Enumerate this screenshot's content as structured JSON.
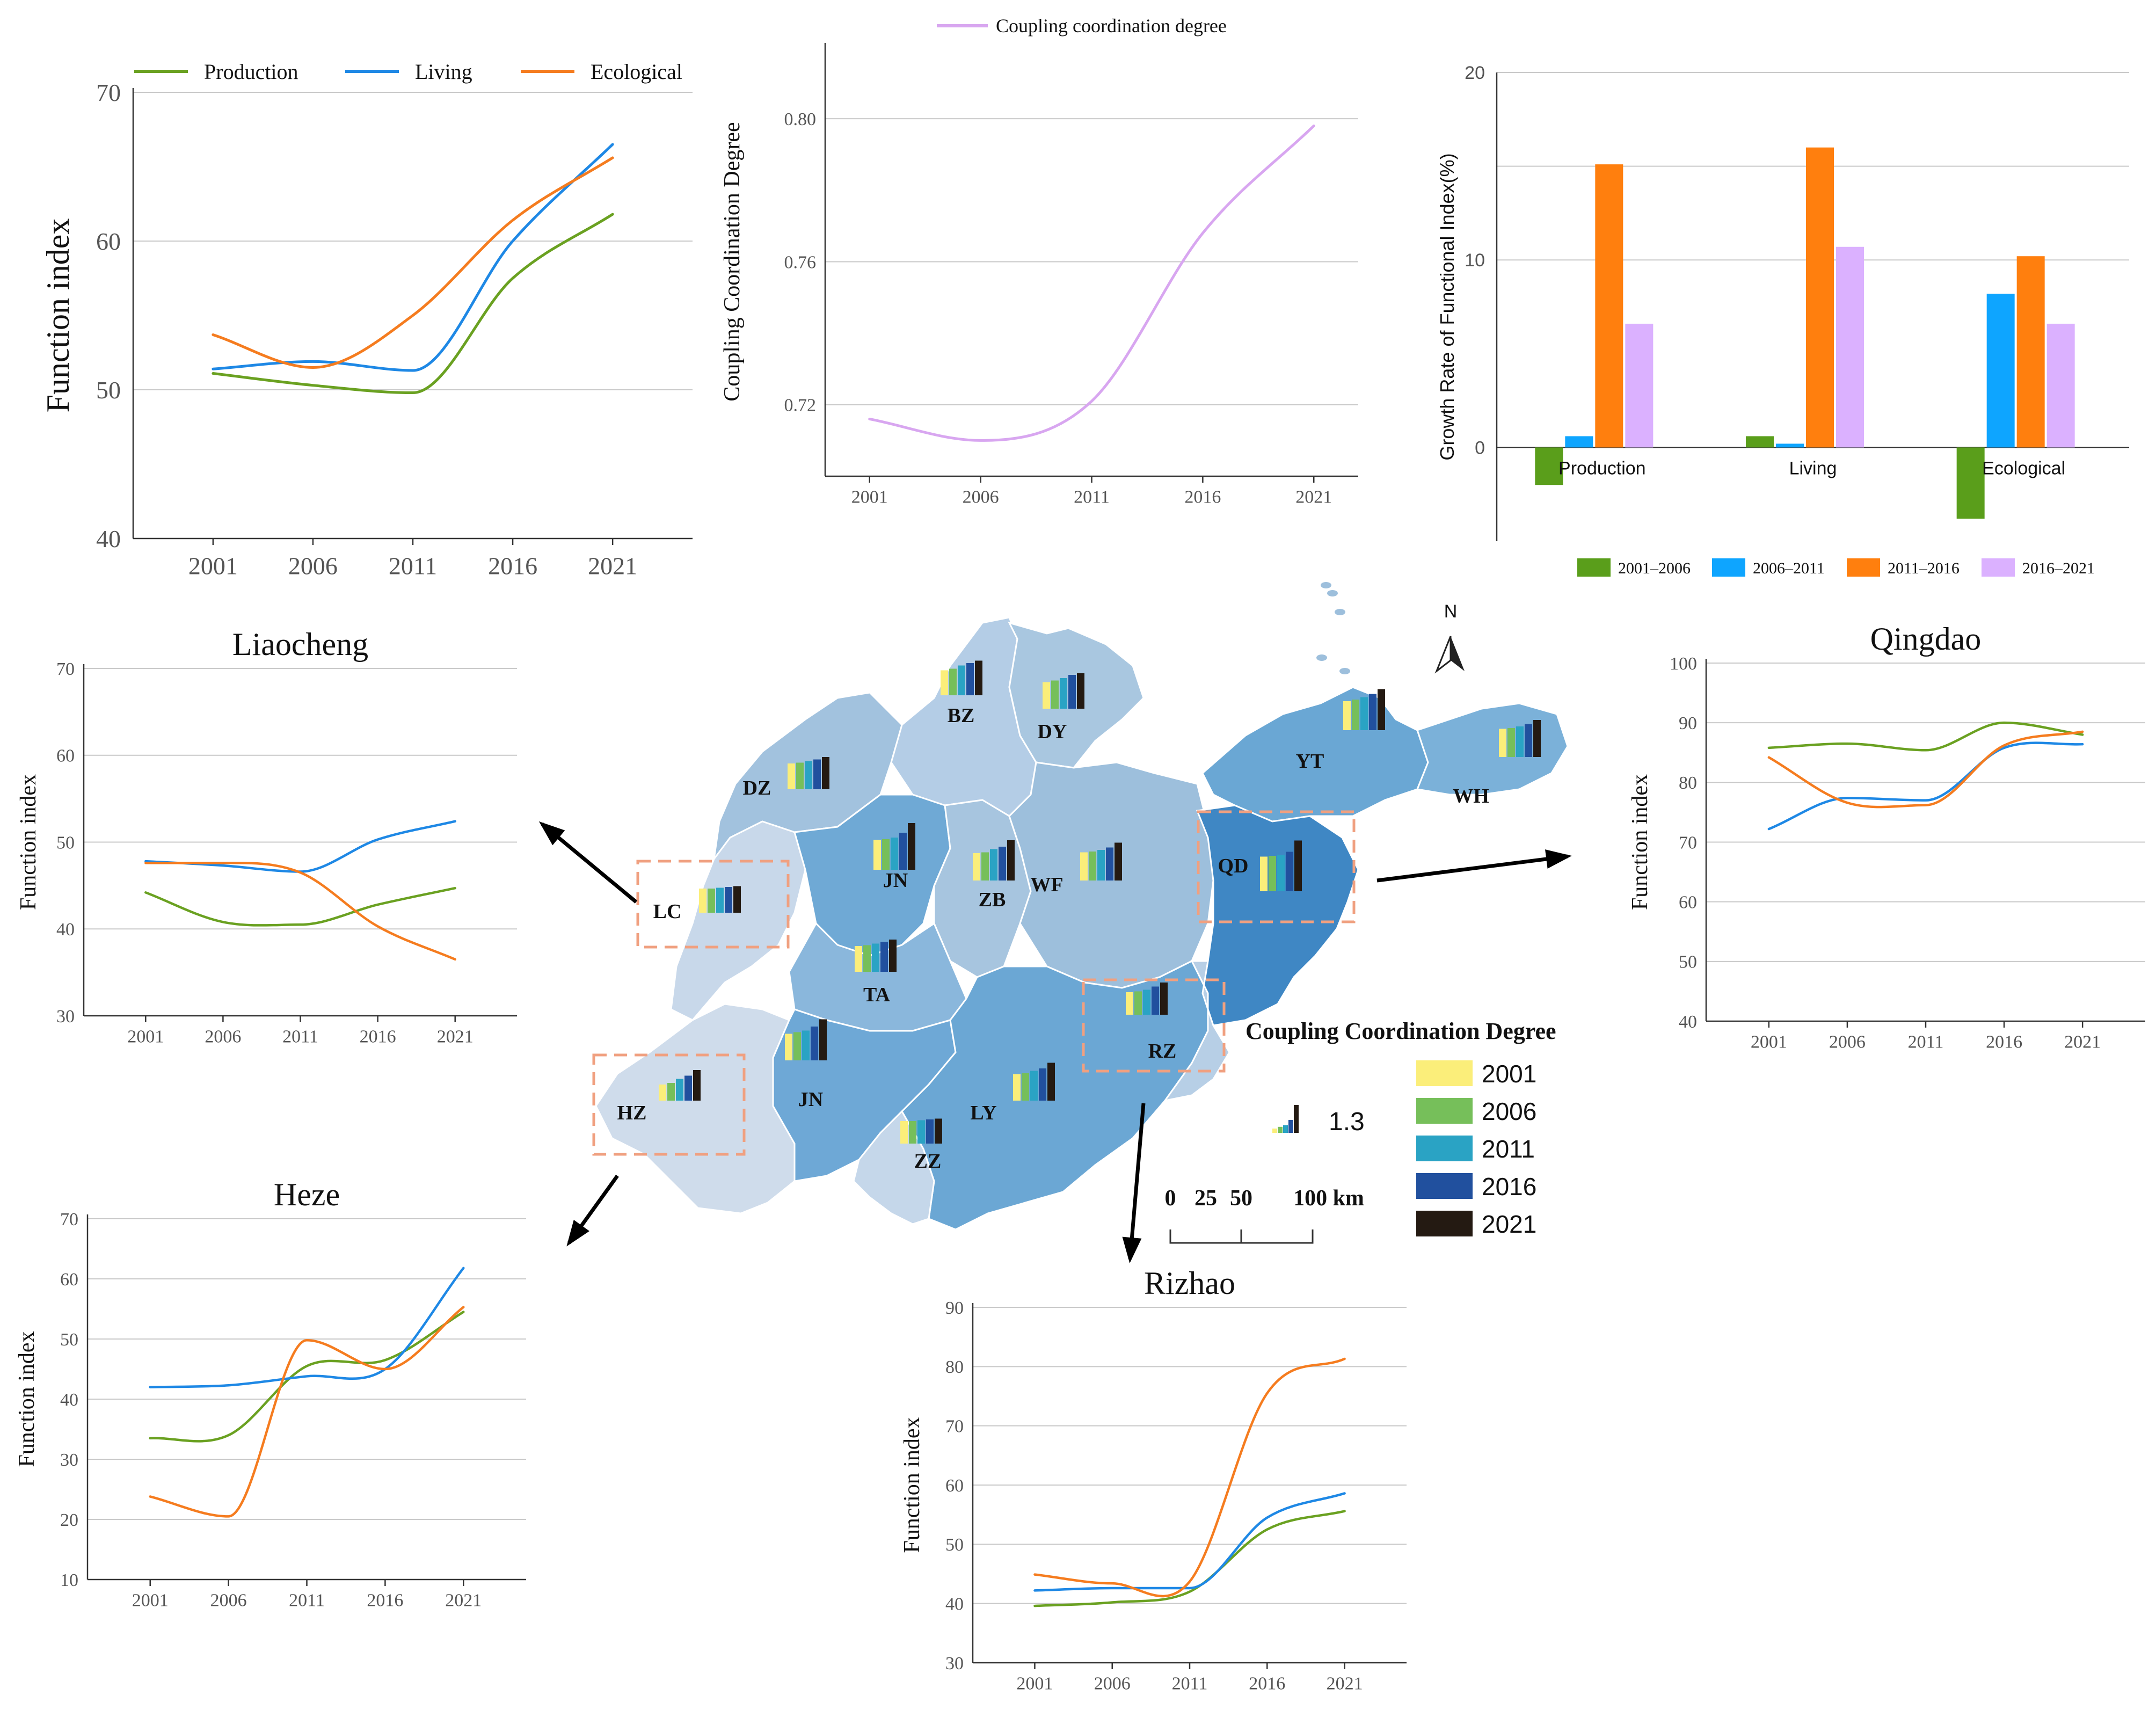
{
  "colors": {
    "production": "#6aa121",
    "living": "#1e88e5",
    "ecological": "#f57c1f",
    "coupling": "#d8a6f0",
    "g2001_2006": "#5a9e1b",
    "g2006_2011": "#0ea5ff",
    "g2011_2016": "#ff7f0e",
    "g2016_2021": "#dbb1ff",
    "y2001": "#fbee7a",
    "y2006": "#76bf5a",
    "y2011": "#2aa3c4",
    "y2016": "#21509e",
    "y2021": "#241a12",
    "grid": "#c9c9c9",
    "axis": "#333333",
    "dash_box": "#f0a080"
  },
  "chart_data": [
    {
      "id": "main",
      "type": "line",
      "title": "",
      "xlabel": "",
      "ylabel": "Function index",
      "x": [
        2001,
        2006,
        2011,
        2016,
        2021
      ],
      "xlim": [
        1997,
        2025
      ],
      "ylim": [
        40,
        70
      ],
      "yticks": [
        40,
        50,
        60,
        70
      ],
      "legend_position": "top",
      "series": [
        {
          "name": "Production",
          "key": "production",
          "values": [
            51.1,
            50.3,
            49.8,
            57.5,
            61.8
          ]
        },
        {
          "name": "Living",
          "key": "living",
          "values": [
            51.4,
            51.9,
            51.3,
            60.0,
            66.5
          ]
        },
        {
          "name": "Ecological",
          "key": "ecological",
          "values": [
            53.7,
            51.5,
            55.0,
            61.4,
            65.6
          ]
        }
      ]
    },
    {
      "id": "coupling",
      "type": "line",
      "title": "",
      "xlabel": "",
      "ylabel": "Coupling Coordination Degree",
      "x": [
        2001,
        2006,
        2011,
        2016,
        2021
      ],
      "xlim": [
        1999,
        2023
      ],
      "ylim": [
        0.7,
        0.82
      ],
      "yticks": [
        0.72,
        0.76,
        0.8
      ],
      "ytick_labels": [
        "0.72",
        "0.76",
        "0.80"
      ],
      "legend_position": "top",
      "series": [
        {
          "name": "Coupling coordination degree",
          "key": "coupling",
          "values": [
            0.716,
            0.71,
            0.721,
            0.768,
            0.798
          ]
        }
      ]
    },
    {
      "id": "growth",
      "type": "bar",
      "title": "",
      "xlabel": "",
      "ylabel": "Growth Rate of Functional Index(%)",
      "categories": [
        "Production",
        "Living",
        "Ecological"
      ],
      "ylim": [
        -5,
        20
      ],
      "yticks": [
        0,
        10,
        20
      ],
      "legend_position": "bottom",
      "series": [
        {
          "name": "2001–2006",
          "key": "g2001_2006",
          "values": [
            -2.0,
            0.6,
            -3.8
          ]
        },
        {
          "name": "2006–2011",
          "key": "g2006_2011",
          "values": [
            0.6,
            0.2,
            8.2
          ]
        },
        {
          "name": "2011–2016",
          "key": "g2011_2016",
          "values": [
            15.1,
            16.0,
            10.2
          ]
        },
        {
          "name": "2016–2021",
          "key": "g2016_2021",
          "values": [
            6.6,
            10.7,
            6.6
          ]
        }
      ]
    },
    {
      "id": "liaocheng",
      "type": "line",
      "title": "Liaocheng",
      "xlabel": "",
      "ylabel": "Function index",
      "x": [
        2001,
        2006,
        2011,
        2016,
        2021
      ],
      "xlim": [
        1997,
        2025
      ],
      "ylim": [
        30,
        70
      ],
      "yticks": [
        30,
        40,
        50,
        60,
        70
      ],
      "series": [
        {
          "name": "Production",
          "key": "production",
          "values": [
            44.2,
            40.8,
            40.5,
            42.8,
            44.7
          ]
        },
        {
          "name": "Living",
          "key": "living",
          "values": [
            47.8,
            47.3,
            46.6,
            50.3,
            52.4
          ]
        },
        {
          "name": "Ecological",
          "key": "ecological",
          "values": [
            47.6,
            47.6,
            46.5,
            40.3,
            36.5
          ]
        }
      ]
    },
    {
      "id": "qingdao",
      "type": "line",
      "title": "Qingdao",
      "xlabel": "",
      "ylabel": "Function index",
      "x": [
        2001,
        2006,
        2011,
        2016,
        2021
      ],
      "xlim": [
        1997,
        2025
      ],
      "ylim": [
        40,
        100
      ],
      "yticks": [
        40,
        50,
        60,
        70,
        80,
        90,
        100
      ],
      "series": [
        {
          "name": "Production",
          "key": "production",
          "values": [
            85.8,
            86.5,
            85.4,
            90.0,
            88.0
          ]
        },
        {
          "name": "Living",
          "key": "living",
          "values": [
            72.2,
            77.4,
            77.0,
            85.8,
            86.4
          ]
        },
        {
          "name": "Ecological",
          "key": "ecological",
          "values": [
            84.2,
            76.6,
            76.2,
            86.2,
            88.5
          ]
        }
      ]
    },
    {
      "id": "heze",
      "type": "line",
      "title": "Heze",
      "xlabel": "",
      "ylabel": "Function index",
      "x": [
        2001,
        2006,
        2011,
        2016,
        2021
      ],
      "xlim": [
        1997,
        2025
      ],
      "ylim": [
        10,
        70
      ],
      "yticks": [
        10,
        20,
        30,
        40,
        50,
        60,
        70
      ],
      "series": [
        {
          "name": "Production",
          "key": "production",
          "values": [
            33.5,
            34.0,
            45.5,
            46.5,
            54.5
          ]
        },
        {
          "name": "Living",
          "key": "living",
          "values": [
            42.0,
            42.3,
            43.8,
            45.0,
            61.8
          ]
        },
        {
          "name": "Ecological",
          "key": "ecological",
          "values": [
            23.8,
            20.5,
            49.8,
            45.0,
            55.3
          ]
        }
      ]
    },
    {
      "id": "rizhao",
      "type": "line",
      "title": "Rizhao",
      "xlabel": "",
      "ylabel": "Function index",
      "x": [
        2001,
        2006,
        2011,
        2016,
        2021
      ],
      "xlim": [
        1997,
        2025
      ],
      "ylim": [
        30,
        90
      ],
      "yticks": [
        30,
        40,
        50,
        60,
        70,
        80,
        90
      ],
      "series": [
        {
          "name": "Production",
          "key": "production",
          "values": [
            39.6,
            40.2,
            42.0,
            52.5,
            55.6
          ]
        },
        {
          "name": "Living",
          "key": "living",
          "values": [
            42.2,
            42.6,
            42.6,
            54.5,
            58.6
          ]
        },
        {
          "name": "Ecological",
          "key": "ecological",
          "values": [
            44.9,
            43.4,
            43.7,
            75.5,
            81.3
          ]
        }
      ]
    }
  ],
  "map": {
    "north_label": "N",
    "title": "Coupling Coordination Degree",
    "size_reference_label": "1.3",
    "scale_labels": [
      "0",
      "25",
      "50",
      "100 km"
    ],
    "year_legend": [
      "2001",
      "2006",
      "2011",
      "2016",
      "2021"
    ],
    "cities": [
      {
        "code": "BZ",
        "values": [
          0.62,
          0.66,
          0.74,
          0.8,
          0.86
        ]
      },
      {
        "code": "DY",
        "values": [
          0.66,
          0.7,
          0.76,
          0.84,
          0.88
        ]
      },
      {
        "code": "DZ",
        "values": [
          0.64,
          0.66,
          0.7,
          0.74,
          0.8
        ]
      },
      {
        "code": "YT",
        "values": [
          0.72,
          0.76,
          0.82,
          0.9,
          1.02
        ]
      },
      {
        "code": "WH",
        "values": [
          0.7,
          0.72,
          0.76,
          0.82,
          0.92
        ]
      },
      {
        "code": "JN",
        "values": [
          0.74,
          0.76,
          0.8,
          0.92,
          1.16
        ]
      },
      {
        "code": "ZB",
        "values": [
          0.68,
          0.7,
          0.78,
          0.84,
          1.0
        ]
      },
      {
        "code": "WF",
        "values": [
          0.7,
          0.72,
          0.76,
          0.82,
          0.94
        ]
      },
      {
        "code": "QD",
        "values": [
          0.86,
          0.88,
          0.9,
          0.98,
          1.26
        ]
      },
      {
        "code": "LC",
        "values": [
          0.6,
          0.6,
          0.62,
          0.64,
          0.66
        ]
      },
      {
        "code": "TA",
        "values": [
          0.64,
          0.66,
          0.7,
          0.74,
          0.8
        ]
      },
      {
        "code": "RZ",
        "values": [
          0.56,
          0.58,
          0.62,
          0.7,
          0.8
        ]
      },
      {
        "code": "JN",
        "values": [
          0.66,
          0.7,
          0.74,
          0.84,
          1.02
        ]
      },
      {
        "code": "HZ",
        "values": [
          0.4,
          0.44,
          0.54,
          0.62,
          0.76
        ]
      },
      {
        "code": "LY",
        "values": [
          0.66,
          0.68,
          0.74,
          0.8,
          0.94
        ]
      },
      {
        "code": "ZZ",
        "values": [
          0.56,
          0.56,
          0.58,
          0.6,
          0.62
        ]
      }
    ]
  }
}
